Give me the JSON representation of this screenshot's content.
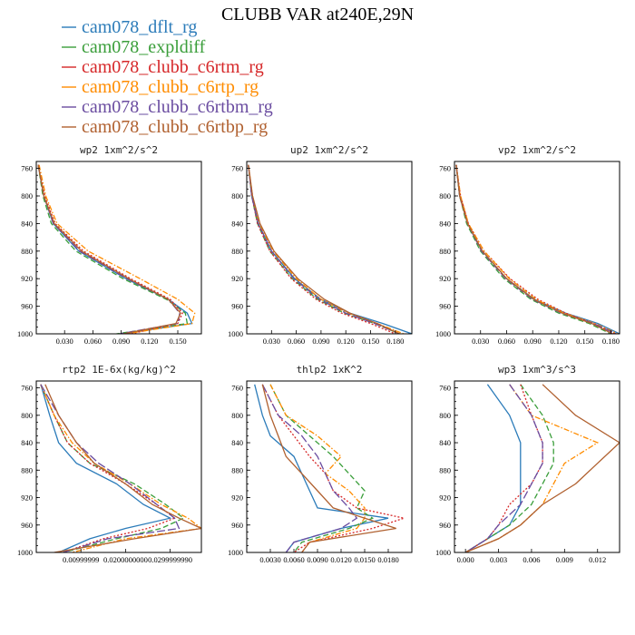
{
  "page": {
    "title": "CLUBB VAR at240E,29N"
  },
  "legend": [
    {
      "name": "cam078_dflt_rg",
      "color": "#2b7bb9",
      "dash": "solid"
    },
    {
      "name": "cam078_expldiff",
      "color": "#3a9e3a",
      "dash": "dash"
    },
    {
      "name": "cam078_clubb_c6rtm_rg",
      "color": "#d62728",
      "dash": "dot"
    },
    {
      "name": "cam078_clubb_c6rtp_rg",
      "color": "#ff8c00",
      "dash": "dashdot"
    },
    {
      "name": "cam078_clubb_c6rtbm_rg",
      "color": "#6a4ca0",
      "dash": "longdash"
    },
    {
      "name": "cam078_clubb_c6rtbp_rg",
      "color": "#b0602f",
      "dash": "solid"
    }
  ],
  "chart_data": [
    {
      "type": "line",
      "title": "wp2   1xm^2/s^2",
      "xlim": [
        0.0,
        0.175
      ],
      "ylim": [
        1000,
        750
      ],
      "xticks": [
        0.03,
        0.06,
        0.09,
        0.12,
        0.15
      ],
      "xtick_labels": [
        "0.030",
        "0.060",
        "0.090",
        "0.120",
        "0.150"
      ],
      "yticks": [
        760,
        800,
        840,
        880,
        920,
        960,
        1000
      ],
      "y": [
        755,
        800,
        840,
        880,
        920,
        950,
        970,
        985,
        1000
      ],
      "series": [
        {
          "name": "cam078_dflt_rg",
          "x": [
            0.002,
            0.008,
            0.018,
            0.045,
            0.095,
            0.14,
            0.16,
            0.165,
            0.09
          ]
        },
        {
          "name": "cam078_expldiff",
          "x": [
            0.002,
            0.007,
            0.016,
            0.042,
            0.092,
            0.138,
            0.158,
            0.16,
            0.085
          ]
        },
        {
          "name": "cam078_clubb_c6rtm_rg",
          "x": [
            0.002,
            0.009,
            0.02,
            0.05,
            0.1,
            0.142,
            0.155,
            0.15,
            0.1
          ]
        },
        {
          "name": "cam078_clubb_c6rtp_rg",
          "x": [
            0.003,
            0.01,
            0.022,
            0.055,
            0.11,
            0.15,
            0.168,
            0.165,
            0.095
          ]
        },
        {
          "name": "cam078_clubb_c6rtbm_rg",
          "x": [
            0.002,
            0.008,
            0.018,
            0.046,
            0.096,
            0.14,
            0.152,
            0.15,
            0.088
          ]
        },
        {
          "name": "cam078_clubb_c6rtbp_rg",
          "x": [
            0.002,
            0.008,
            0.019,
            0.048,
            0.098,
            0.14,
            0.153,
            0.148,
            0.092
          ]
        }
      ]
    },
    {
      "type": "line",
      "title": "up2   1xm^2/s^2",
      "xlim": [
        0.0,
        0.2
      ],
      "ylim": [
        1000,
        750
      ],
      "xticks": [
        0.03,
        0.06,
        0.09,
        0.12,
        0.15,
        0.18
      ],
      "xtick_labels": [
        "0.030",
        "0.060",
        "0.090",
        "0.120",
        "0.150",
        "0.180"
      ],
      "yticks": [
        760,
        800,
        840,
        880,
        920,
        960,
        1000
      ],
      "y": [
        755,
        800,
        840,
        880,
        920,
        950,
        970,
        985,
        1000
      ],
      "series": [
        {
          "name": "cam078_dflt_rg",
          "x": [
            0.002,
            0.006,
            0.014,
            0.03,
            0.058,
            0.09,
            0.125,
            0.165,
            0.2
          ]
        },
        {
          "name": "cam078_expldiff",
          "x": [
            0.002,
            0.006,
            0.013,
            0.028,
            0.055,
            0.086,
            0.118,
            0.155,
            0.185
          ]
        },
        {
          "name": "cam078_clubb_c6rtm_rg",
          "x": [
            0.002,
            0.006,
            0.013,
            0.028,
            0.054,
            0.084,
            0.115,
            0.15,
            0.18
          ]
        },
        {
          "name": "cam078_clubb_c6rtp_rg",
          "x": [
            0.002,
            0.007,
            0.015,
            0.032,
            0.06,
            0.09,
            0.122,
            0.158,
            0.19
          ]
        },
        {
          "name": "cam078_clubb_c6rtbm_rg",
          "x": [
            0.002,
            0.006,
            0.014,
            0.03,
            0.057,
            0.088,
            0.12,
            0.155,
            0.185
          ]
        },
        {
          "name": "cam078_clubb_c6rtbp_rg",
          "x": [
            0.002,
            0.007,
            0.016,
            0.033,
            0.062,
            0.094,
            0.125,
            0.158,
            0.185
          ]
        }
      ]
    },
    {
      "type": "line",
      "title": "vp2   1xm^2/s^2",
      "xlim": [
        0.0,
        0.19
      ],
      "ylim": [
        1000,
        750
      ],
      "xticks": [
        0.03,
        0.06,
        0.09,
        0.12,
        0.15,
        0.18
      ],
      "xtick_labels": [
        "0.030",
        "0.060",
        "0.090",
        "0.120",
        "0.150",
        "0.180"
      ],
      "yticks": [
        760,
        800,
        840,
        880,
        920,
        960,
        1000
      ],
      "y": [
        755,
        800,
        840,
        880,
        920,
        950,
        970,
        985,
        1000
      ],
      "series": [
        {
          "name": "cam078_dflt_rg",
          "x": [
            0.002,
            0.006,
            0.015,
            0.032,
            0.06,
            0.092,
            0.128,
            0.165,
            0.19
          ]
        },
        {
          "name": "cam078_expldiff",
          "x": [
            0.002,
            0.006,
            0.014,
            0.03,
            0.057,
            0.088,
            0.12,
            0.155,
            0.18
          ]
        },
        {
          "name": "cam078_clubb_c6rtm_rg",
          "x": [
            0.002,
            0.007,
            0.016,
            0.034,
            0.064,
            0.096,
            0.128,
            0.16,
            0.185
          ]
        },
        {
          "name": "cam078_clubb_c6rtp_rg",
          "x": [
            0.002,
            0.007,
            0.016,
            0.034,
            0.063,
            0.094,
            0.126,
            0.162,
            0.188
          ]
        },
        {
          "name": "cam078_clubb_c6rtbm_rg",
          "x": [
            0.002,
            0.006,
            0.015,
            0.031,
            0.059,
            0.09,
            0.123,
            0.16,
            0.186
          ]
        },
        {
          "name": "cam078_clubb_c6rtbp_rg",
          "x": [
            0.002,
            0.006,
            0.015,
            0.032,
            0.06,
            0.091,
            0.124,
            0.158,
            0.182
          ]
        }
      ]
    },
    {
      "type": "line",
      "title": "rtp2   1E-6x(kg/kg)^2",
      "xlim": [
        0.0,
        0.037
      ],
      "ylim": [
        1000,
        750
      ],
      "xticks": [
        0.01,
        0.02,
        0.03
      ],
      "xtick_labels": [
        "0.00999999",
        "0.0200000000",
        "0.0299999990"
      ],
      "yticks": [
        760,
        800,
        840,
        880,
        920,
        960,
        1000
      ],
      "y": [
        755,
        800,
        840,
        870,
        900,
        930,
        950,
        965,
        980,
        1000
      ],
      "series": [
        {
          "name": "cam078_dflt_rg",
          "x": [
            0.001,
            0.003,
            0.005,
            0.009,
            0.018,
            0.024,
            0.03,
            0.02,
            0.012,
            0.005
          ]
        },
        {
          "name": "cam078_expldiff",
          "x": [
            0.001,
            0.004,
            0.007,
            0.012,
            0.022,
            0.029,
            0.033,
            0.028,
            0.018,
            0.006
          ]
        },
        {
          "name": "cam078_clubb_c6rtm_rg",
          "x": [
            0.001,
            0.004,
            0.007,
            0.012,
            0.02,
            0.027,
            0.031,
            0.025,
            0.015,
            0.006
          ]
        },
        {
          "name": "cam078_clubb_c6rtp_rg",
          "x": [
            0.001,
            0.004,
            0.008,
            0.013,
            0.021,
            0.028,
            0.034,
            0.037,
            0.02,
            0.008
          ]
        },
        {
          "name": "cam078_clubb_c6rtbm_rg",
          "x": [
            0.001,
            0.005,
            0.009,
            0.014,
            0.021,
            0.027,
            0.031,
            0.032,
            0.016,
            0.006
          ]
        },
        {
          "name": "cam078_clubb_c6rtbp_rg",
          "x": [
            0.002,
            0.005,
            0.009,
            0.013,
            0.02,
            0.026,
            0.032,
            0.037,
            0.022,
            0.004
          ]
        }
      ]
    },
    {
      "type": "line",
      "title": "thlp2   1xK^2",
      "xlim": [
        0.0,
        0.021
      ],
      "ylim": [
        1000,
        750
      ],
      "xticks": [
        0.003,
        0.006,
        0.009,
        0.012,
        0.015,
        0.018
      ],
      "xtick_labels": [
        "0.0030",
        "0.0060",
        "0.0090",
        "0.0120",
        "0.0150",
        "0.0180"
      ],
      "yticks": [
        760,
        800,
        840,
        880,
        920,
        960,
        1000
      ],
      "y": [
        755,
        800,
        830,
        860,
        885,
        910,
        935,
        950,
        965,
        985,
        1000
      ],
      "series": [
        {
          "name": "cam078_dflt_rg",
          "x": [
            0.001,
            0.002,
            0.003,
            0.006,
            0.007,
            0.008,
            0.009,
            0.018,
            0.012,
            0.006,
            0.005
          ]
        },
        {
          "name": "cam078_expldiff",
          "x": [
            0.003,
            0.005,
            0.008,
            0.011,
            0.013,
            0.015,
            0.014,
            0.016,
            0.013,
            0.007,
            0.006
          ]
        },
        {
          "name": "cam078_clubb_c6rtm_rg",
          "x": [
            0.002,
            0.004,
            0.006,
            0.008,
            0.01,
            0.011,
            0.014,
            0.02,
            0.016,
            0.008,
            0.006
          ]
        },
        {
          "name": "cam078_clubb_c6rtp_rg",
          "x": [
            0.003,
            0.005,
            0.009,
            0.012,
            0.01,
            0.013,
            0.015,
            0.015,
            0.014,
            0.008,
            0.007
          ]
        },
        {
          "name": "cam078_clubb_c6rtbm_rg",
          "x": [
            0.002,
            0.004,
            0.007,
            0.009,
            0.01,
            0.011,
            0.013,
            0.014,
            0.012,
            0.006,
            0.005
          ]
        },
        {
          "name": "cam078_clubb_c6rtbp_rg",
          "x": [
            0.002,
            0.003,
            0.004,
            0.005,
            0.007,
            0.009,
            0.011,
            0.015,
            0.019,
            0.008,
            0.007
          ]
        }
      ]
    },
    {
      "type": "line",
      "title": "wp3   1xm^3/s^3",
      "xlim": [
        -0.001,
        0.014
      ],
      "ylim": [
        1000,
        750
      ],
      "xticks": [
        0.0,
        0.003,
        0.006,
        0.009,
        0.012
      ],
      "xtick_labels": [
        "0.000",
        "0.003",
        "0.006",
        "0.009",
        "0.012"
      ],
      "yticks": [
        760,
        800,
        840,
        880,
        920,
        960,
        1000
      ],
      "y": [
        755,
        800,
        840,
        870,
        900,
        930,
        960,
        980,
        1000
      ],
      "series": [
        {
          "name": "cam078_dflt_rg",
          "x": [
            0.002,
            0.004,
            0.005,
            0.005,
            0.005,
            0.005,
            0.004,
            0.002,
            0.0
          ]
        },
        {
          "name": "cam078_expldiff",
          "x": [
            0.005,
            0.007,
            0.008,
            0.008,
            0.007,
            0.006,
            0.004,
            0.002,
            0.0
          ]
        },
        {
          "name": "cam078_clubb_c6rtm_rg",
          "x": [
            0.005,
            0.006,
            0.007,
            0.007,
            0.006,
            0.004,
            0.003,
            0.002,
            0.0
          ]
        },
        {
          "name": "cam078_clubb_c6rtp_rg",
          "x": [
            0.004,
            0.006,
            0.012,
            0.009,
            0.008,
            0.007,
            0.005,
            0.003,
            0.0
          ]
        },
        {
          "name": "cam078_clubb_c6rtbm_rg",
          "x": [
            0.004,
            0.006,
            0.007,
            0.007,
            0.006,
            0.005,
            0.003,
            0.002,
            0.0
          ]
        },
        {
          "name": "cam078_clubb_c6rtbp_rg",
          "x": [
            0.007,
            0.01,
            0.014,
            0.012,
            0.01,
            0.007,
            0.005,
            0.003,
            0.0
          ]
        }
      ]
    }
  ]
}
